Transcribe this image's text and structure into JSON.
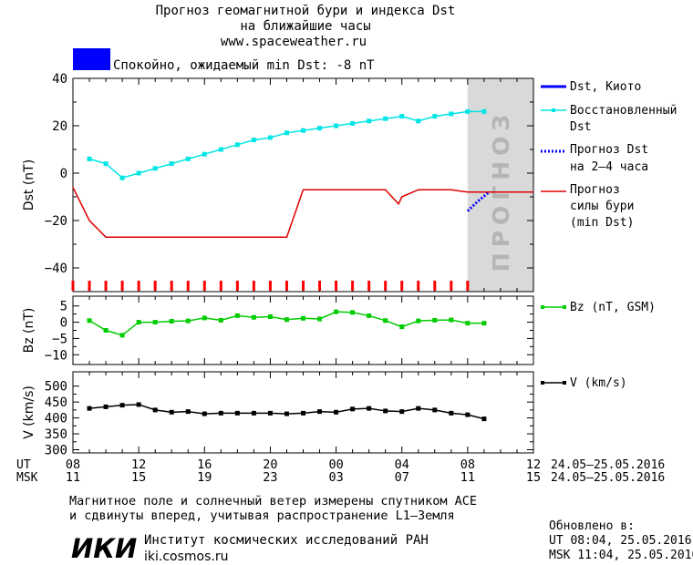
{
  "header": {
    "title_line1": "Прогноз геомагнитной бури и индекса Dst",
    "title_line2": "на ближайшие часы",
    "site": "www.spaceweather.ru",
    "status": "Спокойно, ожидаемый min Dst: -8 nT",
    "status_color": "#0000ff"
  },
  "forecast_zone_label": "ПРОГНОЗ",
  "time_axis": {
    "ut_label": "UT",
    "msk_label": "MSK",
    "ut_ticks": [
      "08",
      "12",
      "16",
      "20",
      "00",
      "04",
      "08",
      "12"
    ],
    "msk_ticks": [
      "11",
      "15",
      "19",
      "23",
      "03",
      "07",
      "11",
      "15"
    ],
    "date_range_ut": "24.05–25.05.2016",
    "date_range_msk": "24.05–25.05.2016"
  },
  "legend": {
    "dst_kyoto": "Dst, Киото",
    "dst_restored_1": "Восстановленный",
    "dst_restored_2": "Dst",
    "dst_forecast_1": "Прогноз Dst",
    "dst_forecast_2": "на 2–4 часа",
    "storm_1": "Прогноз",
    "storm_2": "силы бури",
    "storm_3": "(min Dst)",
    "bz": "Bz (nT, GSM)",
    "v": "V (km/s)"
  },
  "colors": {
    "dst_restored": "#00e5e5",
    "dst_kyoto": "#0000ff",
    "dst_forecast": "#0000ff",
    "storm": "#dd0000",
    "bz": "#00cc00",
    "v": "#000000",
    "forecast_zone": "#d9d9d9",
    "ticks_red": "#ff0000"
  },
  "footer": {
    "note_line1": "Магнитное поле и солнечный ветер измерены спутником ACE",
    "note_line2": "и сдвинуты вперед, учитывая распространение L1–Земля",
    "logo_text": "ИКИ",
    "institute": "Институт космических исследований РАН",
    "institute_site": "iki.cosmos.ru",
    "updated_label": "Обновлено в:",
    "updated_ut": "UT  08:04, 25.05.2016",
    "updated_msk": "MSK 11:04, 25.05.2016"
  },
  "chart_data": [
    {
      "type": "line",
      "ylabel": "Dst (nT)",
      "ylim": [
        -50,
        40
      ],
      "yticks": [
        40,
        20,
        0,
        -20,
        -40
      ],
      "xlim": [
        8,
        36
      ],
      "forecast_zone_x": [
        32,
        36
      ],
      "series": [
        {
          "name": "Восстановленный Dst",
          "x": [
            9,
            10,
            11,
            12,
            13,
            14,
            15,
            16,
            17,
            18,
            19,
            20,
            21,
            22,
            23,
            24,
            25,
            26,
            27,
            28,
            29,
            30,
            31,
            32,
            33
          ],
          "y": [
            6,
            4,
            -2,
            0,
            2,
            4,
            6,
            8,
            10,
            12,
            14,
            15,
            17,
            18,
            19,
            20,
            21,
            22,
            23,
            24,
            22,
            24,
            25,
            26,
            26
          ]
        },
        {
          "name": "Прогноз Dst на 2-4 часа",
          "x": [
            32,
            32.6,
            33.3
          ],
          "y": [
            -16,
            -12,
            -8
          ]
        },
        {
          "name": "Прогноз силы бури (min Dst)",
          "x": [
            8,
            9,
            10,
            21,
            22,
            26,
            27,
            27.8,
            28,
            29,
            30,
            31,
            32,
            36
          ],
          "y": [
            -6,
            -20,
            -27,
            -27,
            -7,
            -7,
            -7,
            -13,
            -10,
            -7,
            -7,
            -7,
            -8,
            -8
          ]
        }
      ],
      "red_tick_x": [
        8,
        9,
        10,
        11,
        12,
        13,
        14,
        15,
        16,
        17,
        18,
        19,
        20,
        21,
        22,
        23,
        24,
        25,
        26,
        27,
        28,
        29,
        30,
        31,
        32
      ]
    },
    {
      "type": "line",
      "ylabel": "Bz (nT)",
      "ylim": [
        -13,
        8
      ],
      "yticks": [
        5,
        0,
        -5,
        -10
      ],
      "xlim": [
        8,
        36
      ],
      "series": [
        {
          "name": "Bz (nT, GSM)",
          "x": [
            9,
            10,
            11,
            12,
            13,
            14,
            15,
            16,
            17,
            18,
            19,
            20,
            21,
            22,
            23,
            24,
            25,
            26,
            27,
            28,
            29,
            30,
            31,
            32,
            33
          ],
          "y": [
            0.5,
            -2.5,
            -4,
            0,
            0,
            0.3,
            0.4,
            1.3,
            0.6,
            2,
            1.5,
            1.7,
            0.8,
            1.2,
            1,
            3.2,
            3,
            2,
            0.5,
            -1.4,
            0.4,
            0.6,
            0.7,
            -0.3,
            -0.3
          ]
        }
      ]
    },
    {
      "type": "line",
      "ylabel": "V (km/s)",
      "ylim": [
        290,
        545
      ],
      "yticks": [
        500,
        450,
        400,
        350,
        300
      ],
      "xlim": [
        8,
        36
      ],
      "series": [
        {
          "name": "V (km/s)",
          "x": [
            9,
            10,
            11,
            12,
            13,
            14,
            15,
            16,
            17,
            18,
            19,
            20,
            21,
            22,
            23,
            24,
            25,
            26,
            27,
            28,
            29,
            30,
            31,
            32,
            33
          ],
          "y": [
            430,
            435,
            440,
            442,
            425,
            418,
            420,
            413,
            415,
            415,
            415,
            415,
            413,
            415,
            420,
            418,
            428,
            430,
            422,
            420,
            430,
            425,
            415,
            410,
            397
          ]
        }
      ]
    }
  ]
}
